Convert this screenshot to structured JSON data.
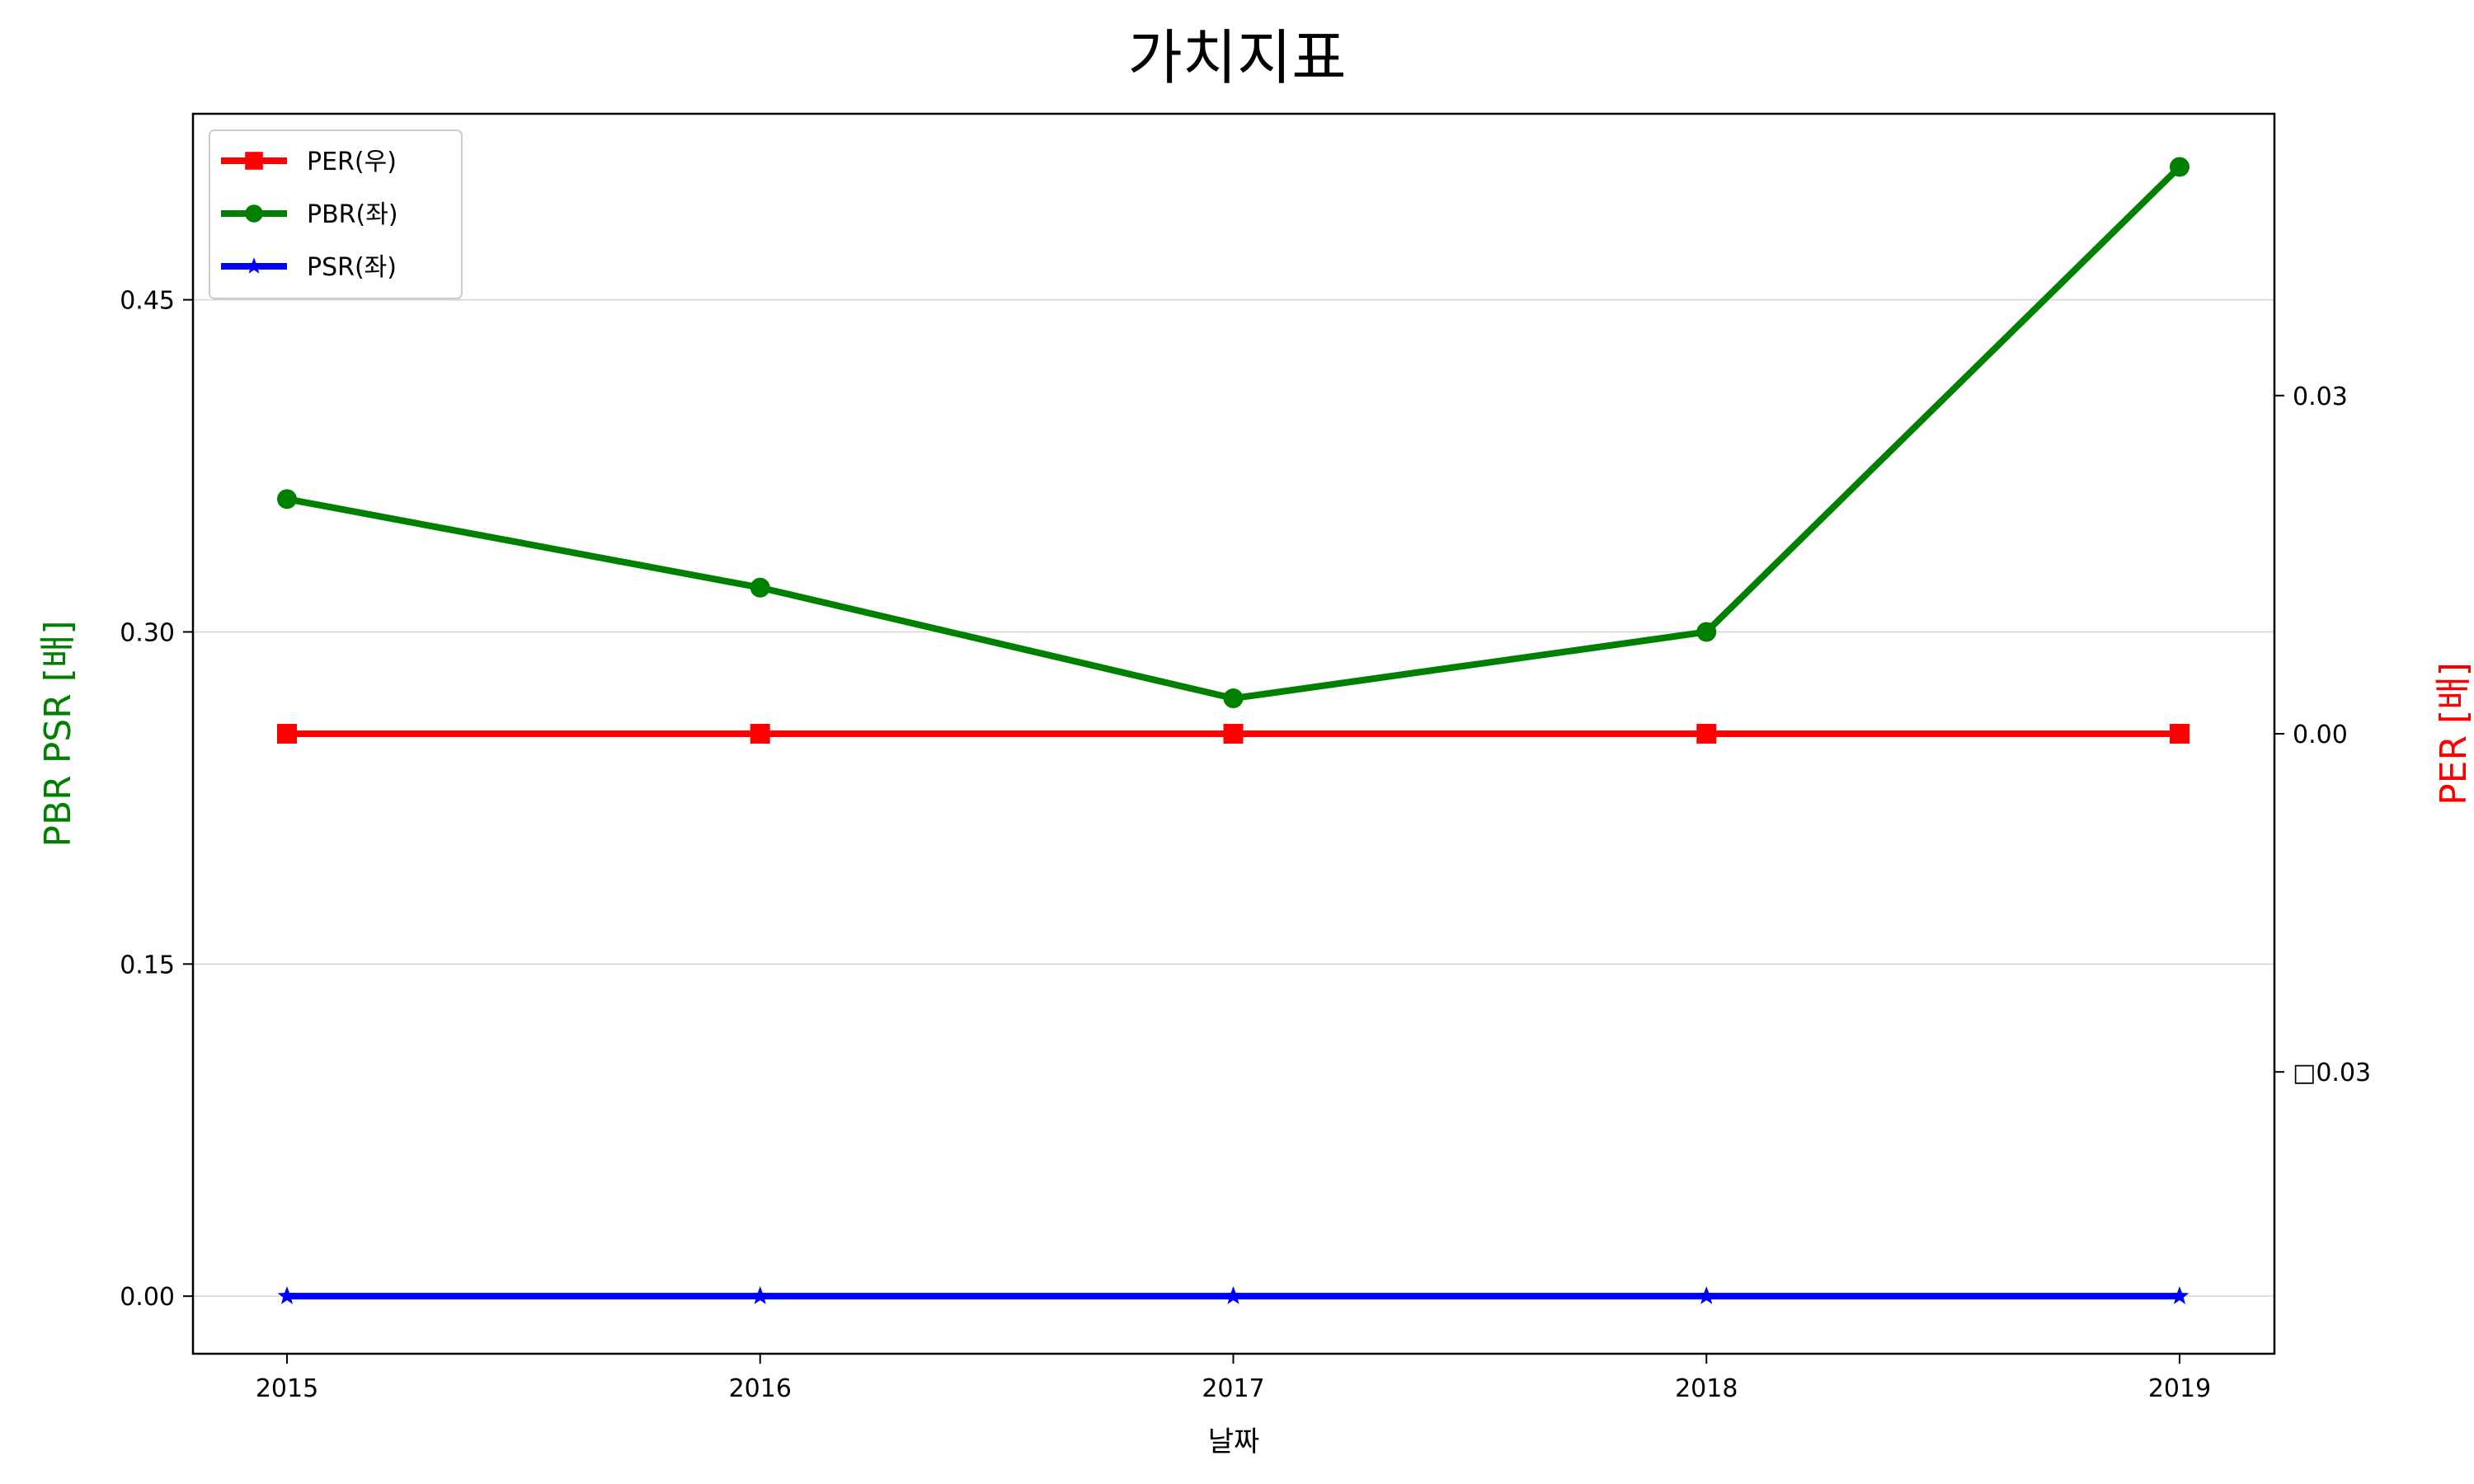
{
  "chart_data": {
    "type": "line",
    "title": "가치지표",
    "xlabel": "날짜",
    "ylabel_left": "PBR PSR [배]",
    "ylabel_right": "PER [배]",
    "x": [
      "2015",
      "2016",
      "2017",
      "2018",
      "2019"
    ],
    "y_left": {
      "lim": [
        -0.026,
        0.534
      ],
      "ticks": [
        "0.00",
        "0.15",
        "0.30",
        "0.45"
      ],
      "tick_values": [
        0.0,
        0.15,
        0.3,
        0.45
      ],
      "grid": true
    },
    "y_right": {
      "lim": [
        -0.055,
        0.055
      ],
      "ticks": [
        "□0.03",
        "0.00",
        "0.03"
      ],
      "tick_values": [
        -0.03,
        0.0,
        0.03
      ]
    },
    "series": [
      {
        "name": "PER(우)",
        "axis": "right",
        "values": [
          0,
          0,
          0,
          0,
          0
        ],
        "color": "#ff0000",
        "marker": "square"
      },
      {
        "name": "PBR(좌)",
        "axis": "left",
        "values": [
          0.36,
          0.32,
          0.27,
          0.3,
          0.51
        ],
        "color": "#008000",
        "marker": "circle"
      },
      {
        "name": "PSR(좌)",
        "axis": "left",
        "values": [
          0,
          0,
          0,
          0,
          0
        ],
        "color": "#0000ff",
        "marker": "star"
      }
    ],
    "legend_position": "upper-left",
    "colors": {
      "left_label": "#008000",
      "right_label": "#ff0000",
      "grid": "#d3d3d3",
      "frame": "#000000"
    }
  }
}
